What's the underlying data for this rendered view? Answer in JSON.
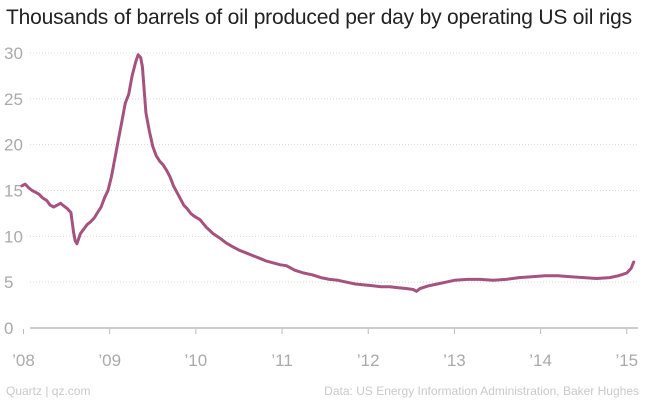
{
  "chart_data": {
    "type": "line",
    "title": "Thousands of barrels of oil produced per day by operating US oil rigs",
    "xlabel": "",
    "ylabel": "",
    "ylim": [
      0,
      30
    ],
    "yticks": [
      0,
      5,
      10,
      15,
      20,
      25,
      30
    ],
    "xticks": [
      2008,
      2009,
      2010,
      2011,
      2012,
      2013,
      2014,
      2015
    ],
    "xtick_labels": [
      "’08",
      "’09",
      "’10",
      "’11",
      "’12",
      "’13",
      "’14",
      "’15"
    ],
    "xlim": [
      2007.82,
      2015.13
    ],
    "grid": true,
    "color": "#a6527f",
    "series": [
      {
        "x": [
          2007.98,
          2008.02,
          2008.06,
          2008.1,
          2008.14,
          2008.18,
          2008.22,
          2008.27,
          2008.31,
          2008.35,
          2008.39,
          2008.43,
          2008.47,
          2008.51,
          2008.55,
          2008.58,
          2008.6,
          2008.62,
          2008.66,
          2008.7,
          2008.74,
          2008.78,
          2008.82,
          2008.86,
          2008.9,
          2008.94,
          2008.98,
          2009.02,
          2009.06,
          2009.1,
          2009.14,
          2009.18,
          2009.22,
          2009.26,
          2009.3,
          2009.33,
          2009.36,
          2009.38,
          2009.42,
          2009.46,
          2009.5,
          2009.54,
          2009.58,
          2009.62,
          2009.66,
          2009.7,
          2009.74,
          2009.78,
          2009.82,
          2009.86,
          2009.9,
          2009.94,
          2009.98,
          2010.05,
          2010.12,
          2010.2,
          2010.28,
          2010.35,
          2010.42,
          2010.5,
          2010.58,
          2010.66,
          2010.74,
          2010.82,
          2010.9,
          2010.98,
          2011.05,
          2011.15,
          2011.25,
          2011.35,
          2011.45,
          2011.55,
          2011.65,
          2011.75,
          2011.85,
          2011.95,
          2012.05,
          2012.15,
          2012.25,
          2012.35,
          2012.45,
          2012.52,
          2012.56,
          2012.6,
          2012.7,
          2012.8,
          2012.9,
          2013.0,
          2013.15,
          2013.3,
          2013.45,
          2013.6,
          2013.75,
          2013.9,
          2014.05,
          2014.2,
          2014.35,
          2014.5,
          2014.65,
          2014.8,
          2014.9,
          2015.0,
          2015.05,
          2015.08
        ],
        "values": [
          15.5,
          15.7,
          15.3,
          15.0,
          14.8,
          14.6,
          14.2,
          13.9,
          13.4,
          13.2,
          13.4,
          13.6,
          13.3,
          13.0,
          12.6,
          10.5,
          9.5,
          9.2,
          10.3,
          10.8,
          11.3,
          11.6,
          12.0,
          12.6,
          13.2,
          14.2,
          15.0,
          16.5,
          18.5,
          20.5,
          22.5,
          24.5,
          25.5,
          27.5,
          29.0,
          29.8,
          29.5,
          28.5,
          23.5,
          21.5,
          19.8,
          18.8,
          18.2,
          17.8,
          17.2,
          16.5,
          15.5,
          14.8,
          14.1,
          13.4,
          13.0,
          12.5,
          12.2,
          11.8,
          11.0,
          10.3,
          9.8,
          9.3,
          8.9,
          8.5,
          8.2,
          7.9,
          7.6,
          7.3,
          7.1,
          6.9,
          6.8,
          6.3,
          6.0,
          5.8,
          5.5,
          5.3,
          5.2,
          5.0,
          4.8,
          4.7,
          4.6,
          4.5,
          4.5,
          4.4,
          4.3,
          4.2,
          4.0,
          4.3,
          4.6,
          4.8,
          5.0,
          5.2,
          5.3,
          5.3,
          5.2,
          5.3,
          5.5,
          5.6,
          5.7,
          5.7,
          5.6,
          5.5,
          5.4,
          5.5,
          5.7,
          6.0,
          6.5,
          7.2
        ]
      }
    ]
  },
  "footer": {
    "source_left": "Quartz | qz.com",
    "source_right": "Data: US Energy Information Administration, Baker Hughes"
  }
}
